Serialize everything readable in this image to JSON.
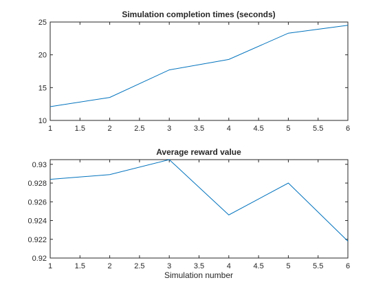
{
  "chart_data": [
    {
      "type": "line",
      "title": "Simulation completion times (seconds)",
      "xlabel": "",
      "ylabel": "",
      "x": [
        1,
        2,
        3,
        4,
        5,
        6
      ],
      "series": [
        {
          "values": [
            12.1,
            13.5,
            17.7,
            19.3,
            23.3,
            24.5
          ],
          "color": "#0072BD"
        }
      ],
      "xlim": [
        1,
        6
      ],
      "ylim": [
        10,
        25
      ],
      "xticks": [
        1,
        1.5,
        2,
        2.5,
        3,
        3.5,
        4,
        4.5,
        5,
        5.5,
        6
      ],
      "yticks": [
        10,
        15,
        20,
        25
      ],
      "xtick_labels": [
        "1",
        "1.5",
        "2",
        "2.5",
        "3",
        "3.5",
        "4",
        "4.5",
        "5",
        "5.5",
        "6"
      ],
      "ytick_labels": [
        "10",
        "15",
        "20",
        "25"
      ],
      "grid": false,
      "legend": "none"
    },
    {
      "type": "line",
      "title": "Average reward value",
      "xlabel": "Simulation number",
      "ylabel": "",
      "x": [
        1,
        2,
        3,
        4,
        5,
        6
      ],
      "series": [
        {
          "values": [
            0.9284,
            0.9289,
            0.9305,
            0.9246,
            0.928,
            0.9218
          ],
          "color": "#0072BD"
        }
      ],
      "xlim": [
        1,
        6
      ],
      "ylim": [
        0.92,
        0.9305
      ],
      "xticks": [
        1,
        1.5,
        2,
        2.5,
        3,
        3.5,
        4,
        4.5,
        5,
        5.5,
        6
      ],
      "yticks": [
        0.92,
        0.922,
        0.924,
        0.926,
        0.928,
        0.93
      ],
      "xtick_labels": [
        "1",
        "1.5",
        "2",
        "2.5",
        "3",
        "3.5",
        "4",
        "4.5",
        "5",
        "5.5",
        "6"
      ],
      "ytick_labels": [
        "0.92",
        "0.922",
        "0.924",
        "0.926",
        "0.928",
        "0.93"
      ],
      "grid": false,
      "legend": "none"
    }
  ]
}
